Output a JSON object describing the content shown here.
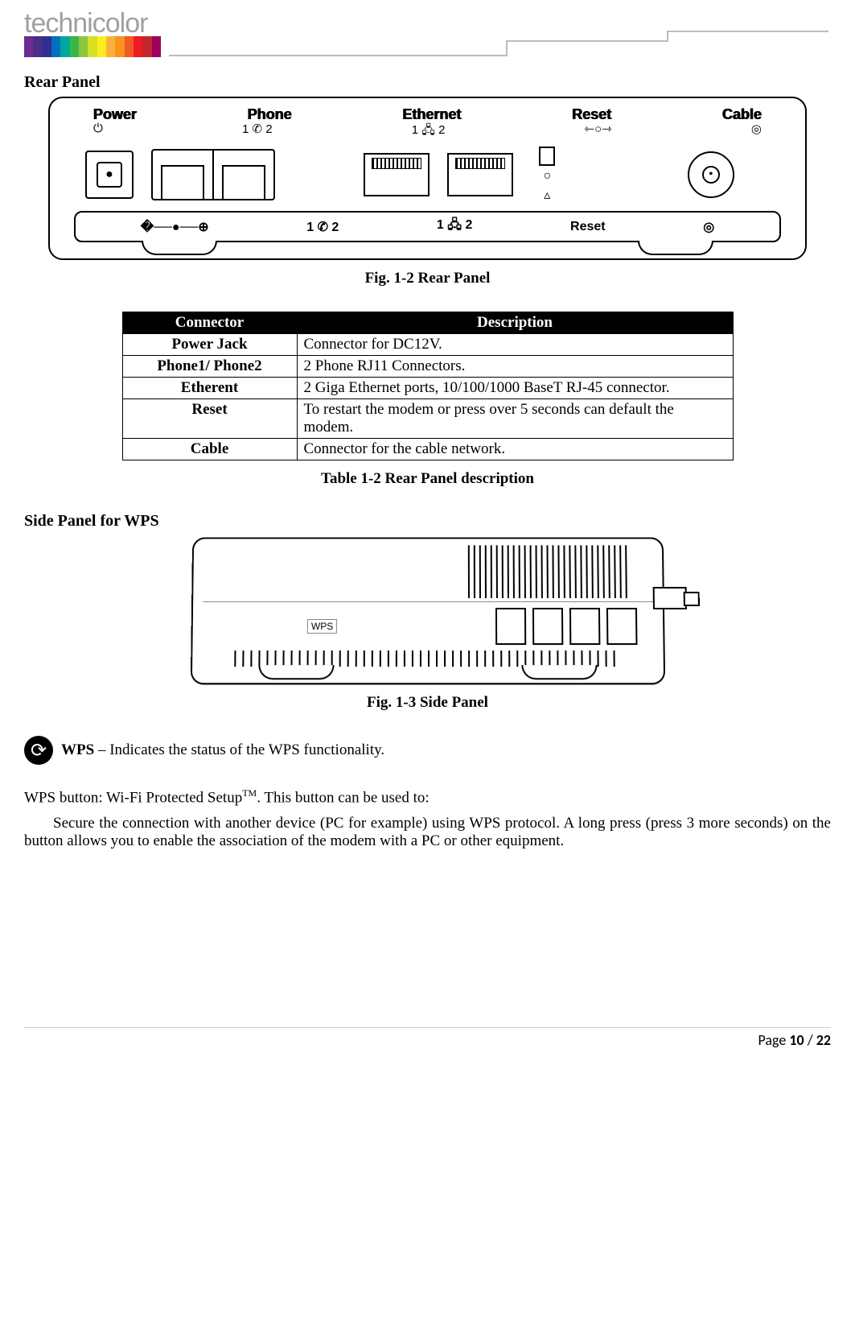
{
  "logo": {
    "text": "technicolor",
    "bar_colors": [
      "#6a2c91",
      "#4b2e83",
      "#2e3192",
      "#0071bc",
      "#00a99d",
      "#39b54a",
      "#8cc63f",
      "#d7df23",
      "#fcee21",
      "#fbb03b",
      "#f7931e",
      "#f15a24",
      "#ed1c24",
      "#c1272d",
      "#9e005d"
    ]
  },
  "sections": {
    "rear_panel_title": "Rear Panel",
    "side_panel_title": "Side Panel for WPS"
  },
  "rear_figure": {
    "top_labels": [
      "Power",
      "Phone",
      "Ethernet",
      "Reset",
      "Cable"
    ],
    "top_sub": [
      "⏻",
      "1  ✆  2",
      "1  🖧  2",
      "⇽○⇾",
      "◎"
    ],
    "bottom_labels": [
      "�──●──⊕",
      "1  ✆  2",
      "1  🖧  2",
      "Reset",
      "◎"
    ],
    "caption": "Fig. 1-2 Rear Panel"
  },
  "table": {
    "headers": [
      "Connector",
      "Description"
    ],
    "rows": [
      [
        "Power Jack",
        "Connector for DC12V."
      ],
      [
        "Phone1/ Phone2",
        "2 Phone RJ11 Connectors."
      ],
      [
        "Etherent",
        "2 Giga Ethernet ports, 10/100/1000 BaseT RJ-45 connector."
      ],
      [
        "Reset",
        "To restart the modem or press over 5 seconds can default the modem."
      ],
      [
        "Cable",
        "Connector for the cable network."
      ]
    ],
    "caption": "Table 1-2 Rear Panel description"
  },
  "side_figure": {
    "wps_label": "WPS",
    "caption": "Fig. 1-3 Side Panel"
  },
  "wps_text": {
    "bold": "WPS",
    "rest": " – Indicates the status of the WPS functionality."
  },
  "body1_pre": "WPS button: Wi-Fi Protected Setup",
  "body1_sup": "TM",
  "body1_post": ". This button can be used to:",
  "body2": "Secure the connection with another device (PC for example) using WPS protocol. A long press (press 3 more seconds) on the button allows you to enable the association of the modem with a PC or other equipment.",
  "footer": {
    "label": "Page ",
    "current": "10",
    "sep": " / ",
    "total": "22"
  }
}
